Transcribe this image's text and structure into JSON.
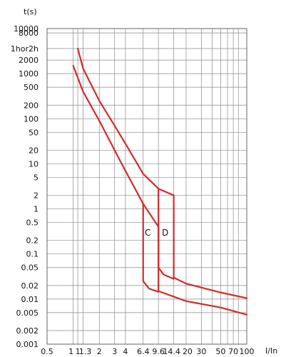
{
  "chart_data": {
    "type": "line",
    "xlabel": "I/In",
    "ylabel": "t(s)",
    "x_scale": "log",
    "y_scale": "log",
    "xlim": [
      0.5,
      100
    ],
    "ylim": [
      0.001,
      10000
    ],
    "grid": true,
    "x_ticks": [
      {
        "value": 0.5,
        "label": "0.5"
      },
      {
        "value": 1,
        "label": "1"
      },
      {
        "value": 1.13,
        "label": "1"
      },
      {
        "value": 1.3,
        "label": "1.3"
      },
      {
        "value": 2,
        "label": "2"
      },
      {
        "value": 3,
        "label": "3"
      },
      {
        "value": 4,
        "label": "4"
      },
      {
        "value": 6.4,
        "label": "6.4"
      },
      {
        "value": 9.6,
        "label": "9.6"
      },
      {
        "value": 14.4,
        "label": "14.4"
      },
      {
        "value": 20,
        "label": "20"
      },
      {
        "value": 30,
        "label": "30"
      },
      {
        "value": 50,
        "label": "50"
      },
      {
        "value": 70,
        "label": "70"
      },
      {
        "value": 100,
        "label": "100"
      }
    ],
    "x_grid": [
      0.5,
      1,
      1.13,
      1.3,
      2,
      3,
      4,
      6.4,
      9.6,
      14.4,
      20,
      30,
      40,
      50,
      60,
      70,
      80,
      100
    ],
    "y_ticks": [
      {
        "value": 10000,
        "label": "10000"
      },
      {
        "value": 8000,
        "label": "8000"
      },
      {
        "value": 3600,
        "label": "1hor2h"
      },
      {
        "value": 2000,
        "label": "2000"
      },
      {
        "value": 1000,
        "label": "1000"
      },
      {
        "value": 500,
        "label": "500"
      },
      {
        "value": 200,
        "label": "200"
      },
      {
        "value": 100,
        "label": "100"
      },
      {
        "value": 50,
        "label": "50"
      },
      {
        "value": 20,
        "label": "20"
      },
      {
        "value": 10,
        "label": "10"
      },
      {
        "value": 5,
        "label": "5"
      },
      {
        "value": 2,
        "label": "2"
      },
      {
        "value": 1,
        "label": "1"
      },
      {
        "value": 0.5,
        "label": "0.5"
      },
      {
        "value": 0.2,
        "label": "0.2"
      },
      {
        "value": 0.1,
        "label": "0.1"
      },
      {
        "value": 0.05,
        "label": "0.05"
      },
      {
        "value": 0.02,
        "label": "0.02"
      },
      {
        "value": 0.01,
        "label": "0.01"
      },
      {
        "value": 0.005,
        "label": "0.005"
      },
      {
        "value": 0.002,
        "label": "0.002"
      },
      {
        "value": 0.001,
        "label": "0.001"
      }
    ],
    "series": [
      {
        "name": "C",
        "color": "#d42a2a",
        "curves": [
          [
            [
              1.0,
              1500
            ],
            [
              1.3,
              400
            ],
            [
              2,
              90
            ],
            [
              3,
              20
            ],
            [
              4,
              7
            ],
            [
              6.4,
              1.3
            ],
            [
              9.6,
              0.4
            ],
            [
              9.6,
              0.015
            ],
            [
              20,
              0.009
            ],
            [
              50,
              0.0065
            ],
            [
              100,
              0.0045
            ]
          ],
          [
            [
              6.4,
              1.3
            ],
            [
              6.4,
              0.025
            ],
            [
              7.5,
              0.017
            ],
            [
              9.6,
              0.0145
            ]
          ]
        ]
      },
      {
        "name": "D",
        "color": "#d42a2a",
        "curves": [
          [
            [
              1.13,
              3600
            ],
            [
              1.3,
              1300
            ],
            [
              2,
              250
            ],
            [
              3,
              70
            ],
            [
              4,
              28
            ],
            [
              6.4,
              6
            ],
            [
              9.6,
              2.8
            ],
            [
              14.4,
              2
            ],
            [
              14.4,
              0.03
            ],
            [
              20,
              0.022
            ],
            [
              50,
              0.014
            ],
            [
              100,
              0.0105
            ]
          ],
          [
            [
              9.6,
              2.8
            ],
            [
              9.6,
              0.05
            ],
            [
              11,
              0.035
            ],
            [
              14.4,
              0.028
            ]
          ]
        ]
      }
    ]
  }
}
